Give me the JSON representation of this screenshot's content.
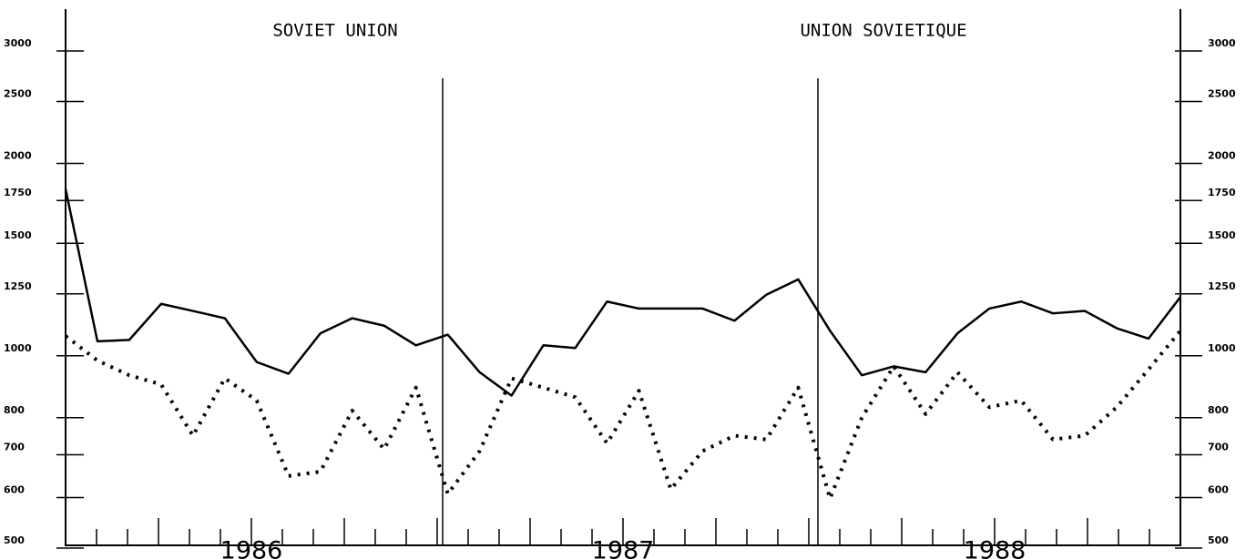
{
  "chart_data": {
    "type": "line",
    "title": "SOVIET UNION",
    "subtitle": "UNION SOVIETIQUE",
    "categories": [
      null,
      null,
      null,
      null,
      null,
      null,
      "1986",
      null,
      null,
      null,
      null,
      null,
      null,
      null,
      null,
      null,
      null,
      null,
      "1987",
      null,
      null,
      null,
      null,
      null,
      null,
      null,
      null,
      null,
      null,
      null,
      "1988",
      null,
      null,
      null,
      null,
      null
    ],
    "series": [
      {
        "color": "#000000",
        "style": "solid",
        "values": [
          1800,
          1040,
          1045,
          1190,
          1160,
          1130,
          965,
          925,
          1070,
          1130,
          1100,
          1025,
          1065,
          930,
          855,
          1025,
          1015,
          1200,
          1170,
          1170,
          1170,
          1120,
          1230,
          1300,
          1080,
          920,
          950,
          930,
          1070,
          1170,
          1200,
          1150,
          1160,
          1090,
          1050,
          1220
        ]
      },
      {
        "color": "#000000",
        "style": "dotted",
        "values": [
          1060,
          970,
          920,
          890,
          740,
          910,
          840,
          640,
          650,
          810,
          705,
          880,
          600,
          700,
          910,
          880,
          850,
          720,
          870,
          610,
          700,
          740,
          730,
          880,
          590,
          790,
          950,
          800,
          930,
          820,
          840,
          730,
          740,
          820,
          940,
          1080
        ]
      }
    ],
    "ylim": [
      500,
      3000
    ],
    "yticks": [
      500,
      600,
      700,
      800,
      1000,
      1250,
      1500,
      1750,
      2000,
      2500,
      3000
    ],
    "log_scale": true
  }
}
